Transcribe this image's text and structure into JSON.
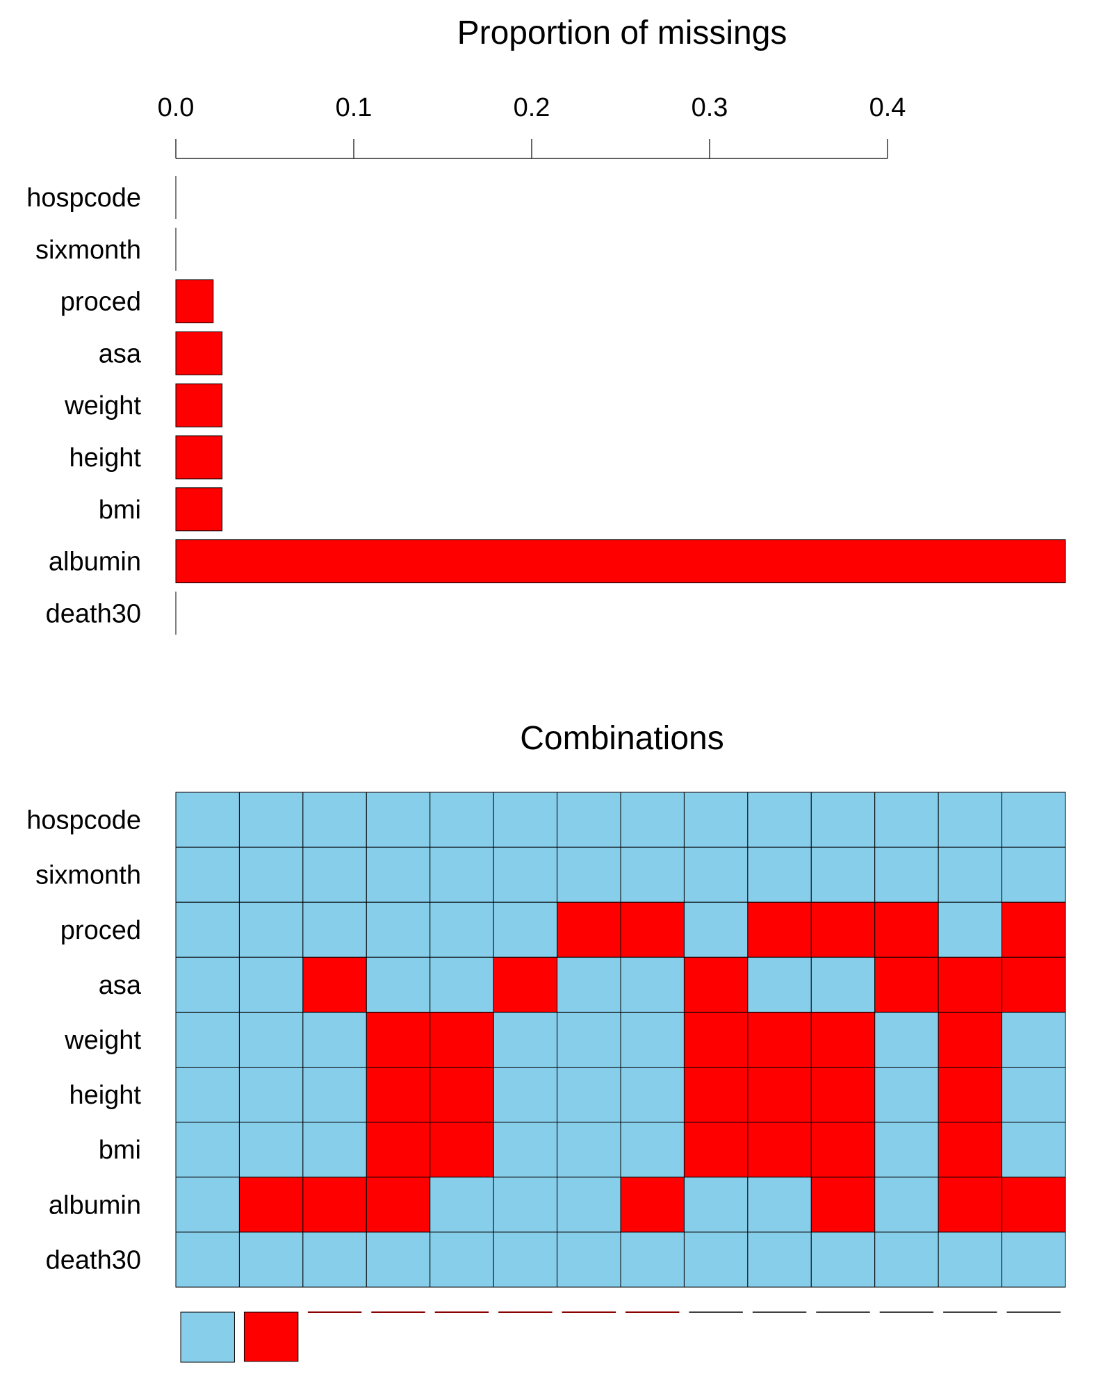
{
  "chart_data": [
    {
      "type": "bar",
      "orientation": "horizontal",
      "title": "Proportion of missings",
      "categories": [
        "hospcode",
        "sixmonth",
        "proced",
        "asa",
        "weight",
        "height",
        "bmi",
        "albumin",
        "death30"
      ],
      "values": [
        0.0,
        0.0,
        0.021,
        0.026,
        0.026,
        0.026,
        0.026,
        0.5,
        0.0
      ],
      "xlim": [
        0,
        0.5
      ],
      "xticks": [
        0.0,
        0.1,
        0.2,
        0.3,
        0.4
      ],
      "xtick_labels": [
        "0.0",
        "0.1",
        "0.2",
        "0.3",
        "0.4"
      ],
      "axis_position": "top",
      "bar_color": "#ff0000"
    },
    {
      "type": "heatmap",
      "title": "Combinations",
      "rows": [
        "hospcode",
        "sixmonth",
        "proced",
        "asa",
        "weight",
        "height",
        "bmi",
        "albumin",
        "death30"
      ],
      "n_columns": 14,
      "missing_matrix": [
        [
          0,
          0,
          0,
          0,
          0,
          0,
          0,
          0,
          0,
          0,
          0,
          0,
          0,
          0
        ],
        [
          0,
          0,
          0,
          0,
          0,
          0,
          0,
          0,
          0,
          0,
          0,
          0,
          0,
          0
        ],
        [
          0,
          0,
          0,
          0,
          0,
          0,
          1,
          1,
          0,
          1,
          1,
          1,
          0,
          1
        ],
        [
          0,
          0,
          1,
          0,
          0,
          1,
          0,
          0,
          1,
          0,
          0,
          1,
          1,
          1
        ],
        [
          0,
          0,
          0,
          1,
          1,
          0,
          0,
          0,
          1,
          1,
          1,
          0,
          1,
          0
        ],
        [
          0,
          0,
          0,
          1,
          1,
          0,
          0,
          0,
          1,
          1,
          1,
          0,
          1,
          0
        ],
        [
          0,
          0,
          0,
          1,
          1,
          0,
          0,
          0,
          1,
          1,
          1,
          0,
          1,
          0
        ],
        [
          0,
          1,
          1,
          1,
          0,
          0,
          0,
          1,
          0,
          0,
          1,
          0,
          1,
          1
        ],
        [
          0,
          0,
          0,
          0,
          0,
          0,
          0,
          0,
          0,
          0,
          0,
          0,
          0,
          0
        ]
      ],
      "observed_color": "#87ceeb",
      "missing_color": "#ff0000",
      "frequency_bars": {
        "counts": [
          62,
          61,
          1,
          1,
          1,
          1,
          1,
          1,
          0,
          0,
          0,
          0,
          0,
          0
        ],
        "colors": [
          "#87ceeb",
          "#ff0000",
          "#8b0000",
          "#8b0000",
          "#8b0000",
          "#8b0000",
          "#8b0000",
          "#8b0000",
          "#404040",
          "#404040",
          "#404040",
          "#404040",
          "#404040",
          "#404040"
        ]
      }
    }
  ]
}
